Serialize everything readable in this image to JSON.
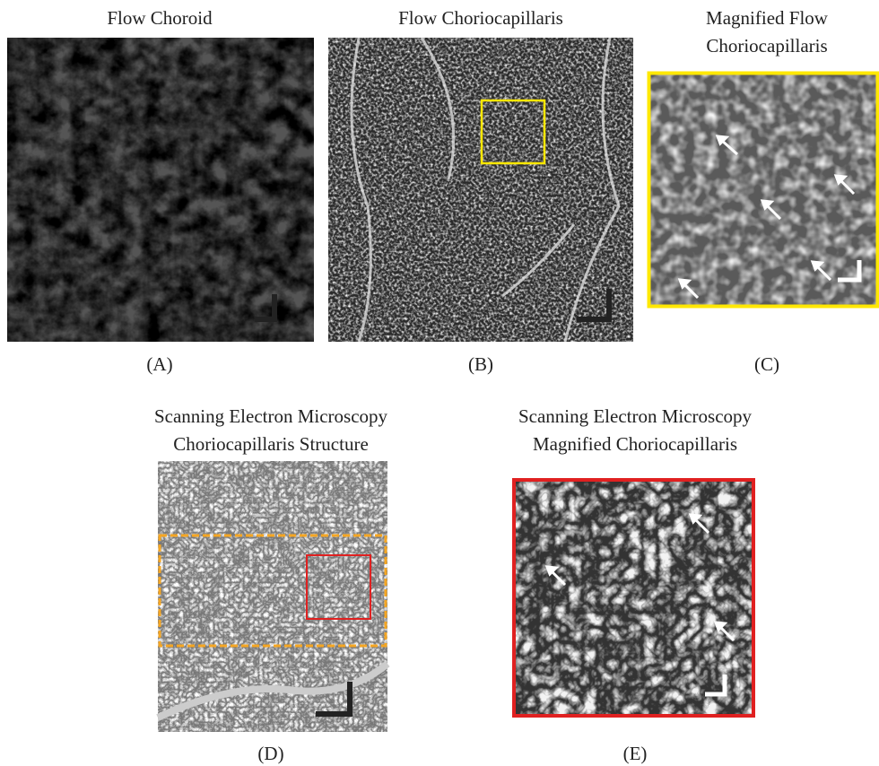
{
  "panels": [
    {
      "title_lines": [
        "Flow Choroid"
      ],
      "label": "(A)"
    },
    {
      "title_lines": [
        "Flow Choriocapillaris"
      ],
      "label": "(B)"
    },
    {
      "title_lines": [
        "Magnified Flow",
        "Choriocapillaris"
      ],
      "label": "(C)"
    },
    {
      "title_lines": [
        "Scanning Electron Microscopy",
        "Choriocapillaris Structure"
      ],
      "label": "(D)"
    },
    {
      "title_lines": [
        "Scanning Electron Microscopy",
        "Magnified Choriocapillaris"
      ],
      "label": "(E)"
    }
  ]
}
